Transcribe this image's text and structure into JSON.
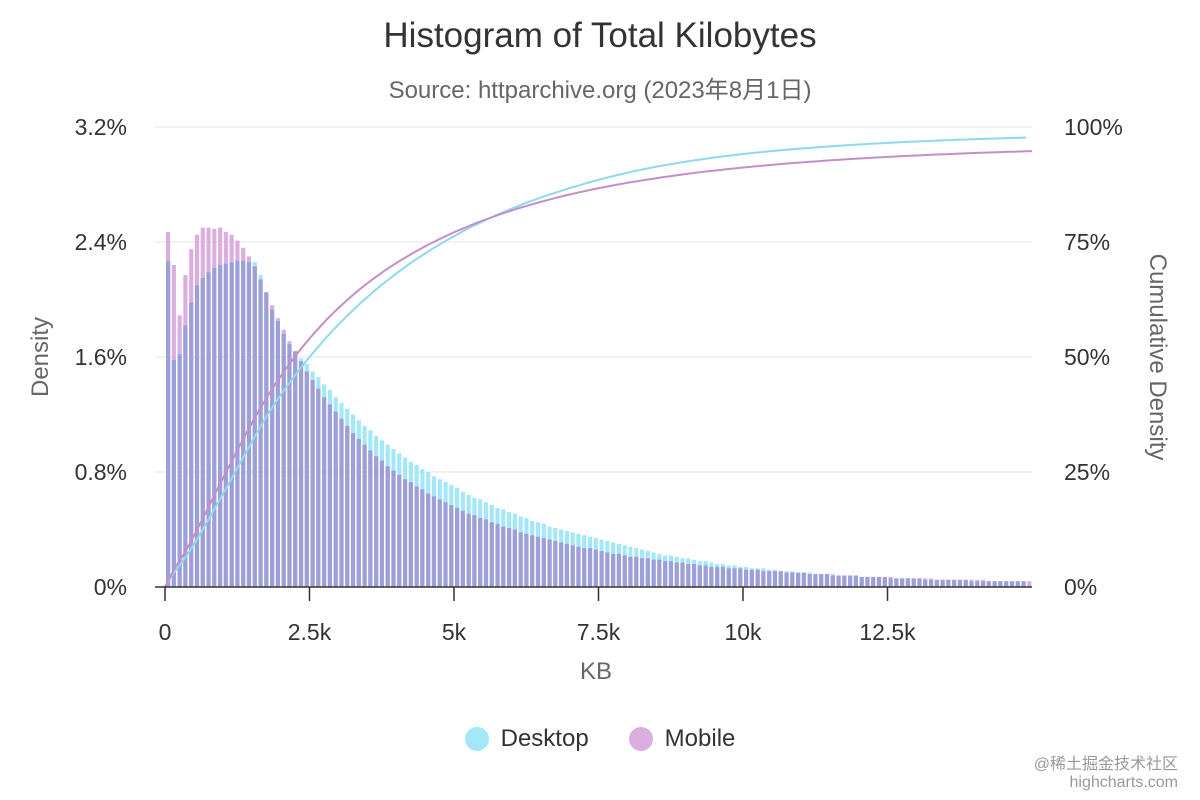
{
  "chart_data": {
    "type": "bar",
    "title": "Histogram of Total Kilobytes",
    "subtitle": "Source: httparchive.org (2023年8月1日)",
    "xlabel": "KB",
    "ylabel": "Density",
    "y2label": "Cumulative Density",
    "xlim": [
      0,
      15000
    ],
    "ylim": [
      0,
      3.2
    ],
    "y2lim": [
      0,
      100
    ],
    "x_ticks": [
      0,
      2500,
      5000,
      7500,
      10000,
      12500
    ],
    "x_tick_labels": [
      "0",
      "2.5k",
      "5k",
      "7.5k",
      "10k",
      "12.5k"
    ],
    "y_ticks": [
      0,
      0.8,
      1.6,
      2.4,
      3.2
    ],
    "y_tick_labels": [
      "0%",
      "0.8%",
      "1.6%",
      "2.4%",
      "3.2%"
    ],
    "y2_ticks": [
      0,
      25,
      50,
      75,
      100
    ],
    "y2_tick_labels": [
      "0%",
      "25%",
      "50%",
      "75%",
      "100%"
    ],
    "bin_width_kb": 100,
    "grid": true,
    "legend_position": "bottom-center",
    "series": [
      {
        "name": "Desktop",
        "color": "#a3e7f8",
        "cumulative_color": "#8fd8f0",
        "density_percent": [
          2.27,
          1.58,
          1.62,
          1.82,
          1.98,
          2.1,
          2.15,
          2.19,
          2.22,
          2.24,
          2.25,
          2.26,
          2.27,
          2.27,
          2.26,
          2.26,
          2.17,
          2.05,
          1.93,
          1.85,
          1.76,
          1.69,
          1.64,
          1.59,
          1.55,
          1.5,
          1.46,
          1.41,
          1.37,
          1.32,
          1.28,
          1.24,
          1.2,
          1.16,
          1.12,
          1.09,
          1.05,
          1.02,
          0.99,
          0.96,
          0.93,
          0.9,
          0.87,
          0.85,
          0.82,
          0.8,
          0.77,
          0.75,
          0.73,
          0.71,
          0.69,
          0.66,
          0.64,
          0.62,
          0.61,
          0.59,
          0.57,
          0.55,
          0.54,
          0.52,
          0.51,
          0.49,
          0.48,
          0.46,
          0.45,
          0.44,
          0.42,
          0.41,
          0.4,
          0.39,
          0.38,
          0.37,
          0.36,
          0.35,
          0.34,
          0.33,
          0.32,
          0.31,
          0.3,
          0.29,
          0.28,
          0.27,
          0.26,
          0.25,
          0.24,
          0.23,
          0.22,
          0.22,
          0.21,
          0.2,
          0.2,
          0.19,
          0.18,
          0.18,
          0.17,
          0.16,
          0.16,
          0.15,
          0.15,
          0.14,
          0.14,
          0.13,
          0.13,
          0.13,
          0.12,
          0.12,
          0.11,
          0.11,
          0.11,
          0.1,
          0.1,
          0.1,
          0.09,
          0.09,
          0.09,
          0.09,
          0.08,
          0.08,
          0.08,
          0.08,
          0.07,
          0.07,
          0.07,
          0.07,
          0.07,
          0.06,
          0.06,
          0.06,
          0.06,
          0.06,
          0.06,
          0.05,
          0.05,
          0.05,
          0.05,
          0.05,
          0.05,
          0.05,
          0.05,
          0.04,
          0.04,
          0.04,
          0.04,
          0.04,
          0.04,
          0.04,
          0.04,
          0.04,
          0.04
        ]
      },
      {
        "name": "Mobile",
        "color": "#dcaedf",
        "cumulative_color": "#c48fc8",
        "density_percent": [
          2.47,
          2.24,
          1.89,
          2.17,
          2.35,
          2.45,
          2.5,
          2.5,
          2.49,
          2.5,
          2.47,
          2.45,
          2.41,
          2.36,
          2.3,
          2.23,
          2.14,
          2.05,
          1.96,
          1.87,
          1.79,
          1.71,
          1.64,
          1.57,
          1.5,
          1.44,
          1.38,
          1.32,
          1.27,
          1.22,
          1.17,
          1.12,
          1.07,
          1.03,
          0.99,
          0.95,
          0.91,
          0.88,
          0.84,
          0.81,
          0.78,
          0.75,
          0.73,
          0.7,
          0.68,
          0.65,
          0.63,
          0.61,
          0.59,
          0.57,
          0.55,
          0.53,
          0.51,
          0.5,
          0.48,
          0.47,
          0.45,
          0.44,
          0.42,
          0.41,
          0.4,
          0.38,
          0.37,
          0.36,
          0.35,
          0.34,
          0.33,
          0.32,
          0.31,
          0.3,
          0.29,
          0.28,
          0.27,
          0.27,
          0.26,
          0.25,
          0.24,
          0.23,
          0.23,
          0.22,
          0.21,
          0.21,
          0.2,
          0.2,
          0.19,
          0.19,
          0.18,
          0.18,
          0.17,
          0.17,
          0.16,
          0.16,
          0.15,
          0.15,
          0.14,
          0.14,
          0.14,
          0.13,
          0.13,
          0.13,
          0.12,
          0.12,
          0.12,
          0.11,
          0.11,
          0.11,
          0.11,
          0.1,
          0.1,
          0.1,
          0.1,
          0.09,
          0.09,
          0.09,
          0.09,
          0.08,
          0.08,
          0.08,
          0.08,
          0.08,
          0.07,
          0.07,
          0.07,
          0.07,
          0.07,
          0.07,
          0.06,
          0.06,
          0.06,
          0.06,
          0.06,
          0.06,
          0.06,
          0.05,
          0.05,
          0.05,
          0.05,
          0.05,
          0.05,
          0.05,
          0.05,
          0.05,
          0.04,
          0.04,
          0.04,
          0.04,
          0.04,
          0.04,
          0.04,
          0.04
        ]
      }
    ]
  },
  "legend": {
    "items": [
      {
        "label": "Desktop",
        "color": "#a3e7f8"
      },
      {
        "label": "Mobile",
        "color": "#dcaedf"
      }
    ]
  },
  "credits": {
    "line1": "@稀土掘金技术社区",
    "line2": "highcharts.com"
  }
}
